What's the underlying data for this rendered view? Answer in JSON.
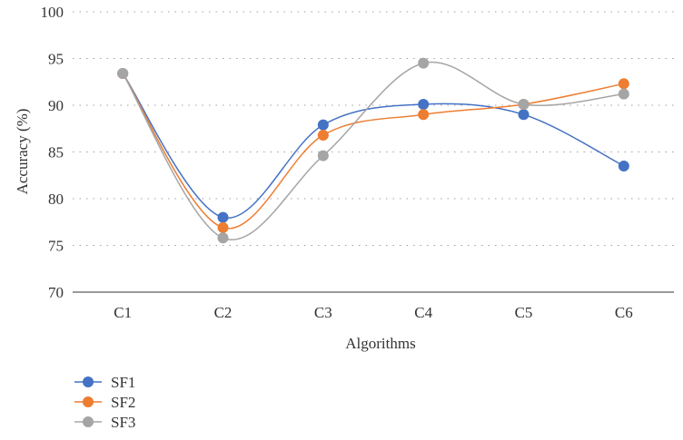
{
  "chart_data": {
    "type": "line",
    "categories": [
      "C1",
      "C2",
      "C3",
      "C4",
      "C5",
      "C6"
    ],
    "series": [
      {
        "name": "SF1",
        "color": "#4472c4",
        "values": [
          93.4,
          78.0,
          87.9,
          90.1,
          89.0,
          83.5
        ]
      },
      {
        "name": "SF2",
        "color": "#ed7d31",
        "values": [
          93.4,
          76.9,
          86.8,
          89.0,
          90.1,
          92.3
        ]
      },
      {
        "name": "SF3",
        "color": "#a5a5a5",
        "values": [
          93.4,
          75.8,
          84.6,
          94.5,
          90.1,
          91.2
        ]
      }
    ],
    "xlabel": "Algorithms",
    "ylabel": "Accuracy (%)",
    "ylim": [
      70,
      100
    ],
    "yticks": [
      70,
      75,
      80,
      85,
      90,
      95,
      100
    ],
    "grid": true,
    "smooth": true,
    "legend_position": "bottom-left"
  }
}
